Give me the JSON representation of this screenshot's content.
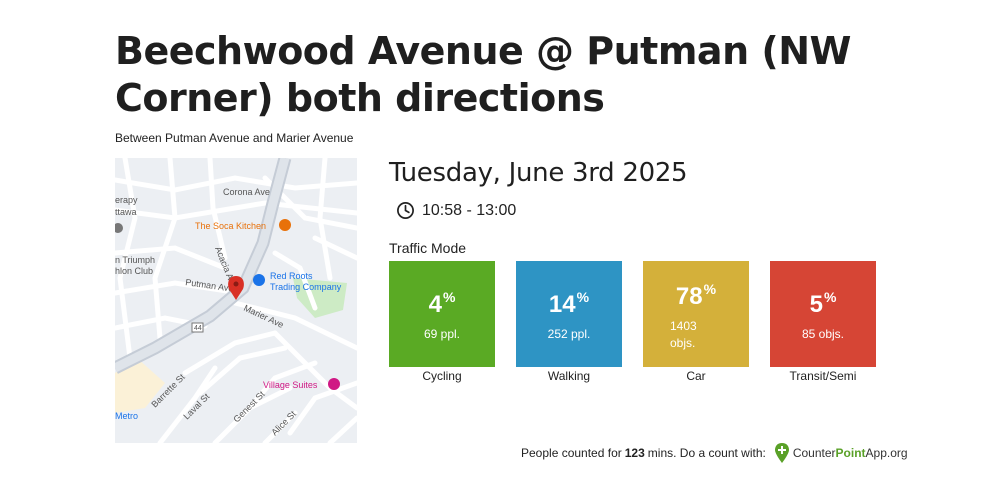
{
  "header": {
    "title": "Beechwood Avenue @ Putman (NW Corner) both directions",
    "subtitle": "Between Putman Avenue and Marier Avenue"
  },
  "map": {
    "labels": {
      "corona": "Corona Ave",
      "therapy1": "erapy",
      "therapy2": "ttawa",
      "soca": "The Soca Kitchen",
      "triumph1": "n Triumph",
      "triumph2": "hlon Club",
      "acacia": "Acacia Av",
      "redroots1": "Red Roots",
      "redroots2": "Trading Company",
      "putman": "Putman Ave",
      "marier": "Marier Ave",
      "route": "44",
      "village": "Village Suites",
      "barrette": "Barrette St",
      "laval": "Laval St",
      "genest": "Genest St",
      "alice": "Alice St",
      "metro": "Metro"
    },
    "colors": {
      "pin": "#d93025",
      "soca_poi": "#e8710a",
      "redroots_poi": "#1a73e8",
      "village_poi": "#d01884"
    }
  },
  "session": {
    "date": "Tuesday, June 3rd 2025",
    "time_range": "10:58 - 13:00",
    "clock_icon": "clock-icon"
  },
  "traffic": {
    "heading": "Traffic Mode",
    "modes": [
      {
        "label": "Cycling",
        "percent": "4",
        "count": "69 ppl.",
        "color": "#5aaa24"
      },
      {
        "label": "Walking",
        "percent": "14",
        "count": "252 ppl.",
        "color": "#2e94c4"
      },
      {
        "label": "Car",
        "percent": "78",
        "count_line1": "1403",
        "count_line2": "objs.",
        "color": "#d4b03a"
      },
      {
        "label": "Transit/Semi",
        "percent": "5",
        "count": "85 objs.",
        "color": "#d64535"
      }
    ],
    "percent_sign": "%"
  },
  "footer": {
    "prefix": "People counted for",
    "minutes": "123",
    "suffix": "mins. Do a count with:",
    "brand_a": "Counter",
    "brand_b": "Point",
    "brand_c": "App.org",
    "logo_icon": "map-pin-logo-icon"
  }
}
